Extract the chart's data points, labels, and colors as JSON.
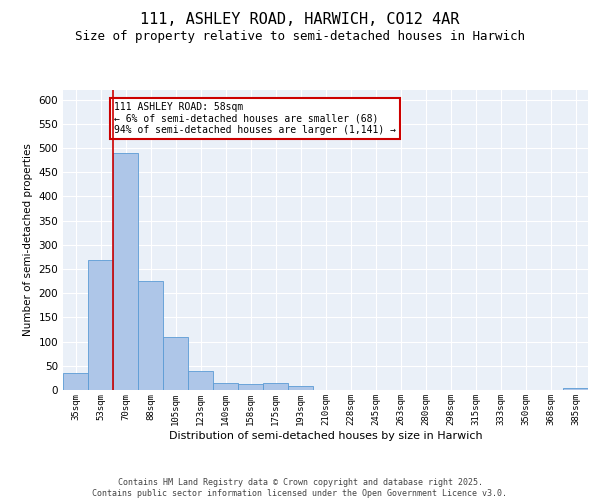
{
  "title1": "111, ASHLEY ROAD, HARWICH, CO12 4AR",
  "title2": "Size of property relative to semi-detached houses in Harwich",
  "xlabel": "Distribution of semi-detached houses by size in Harwich",
  "ylabel": "Number of semi-detached properties",
  "categories": [
    "35sqm",
    "53sqm",
    "70sqm",
    "88sqm",
    "105sqm",
    "123sqm",
    "140sqm",
    "158sqm",
    "175sqm",
    "193sqm",
    "210sqm",
    "228sqm",
    "245sqm",
    "263sqm",
    "280sqm",
    "298sqm",
    "315sqm",
    "333sqm",
    "350sqm",
    "368sqm",
    "385sqm"
  ],
  "values": [
    35,
    268,
    490,
    225,
    110,
    40,
    15,
    13,
    14,
    8,
    0,
    1,
    0,
    0,
    0,
    0,
    0,
    0,
    0,
    0,
    4
  ],
  "bar_color": "#aec6e8",
  "bar_edge_color": "#5b9bd5",
  "annotation_text": "111 ASHLEY ROAD: 58sqm\n← 6% of semi-detached houses are smaller (68)\n94% of semi-detached houses are larger (1,141) →",
  "annotation_box_color": "#ffffff",
  "annotation_box_edge": "#cc0000",
  "footnote": "Contains HM Land Registry data © Crown copyright and database right 2025.\nContains public sector information licensed under the Open Government Licence v3.0.",
  "ylim": [
    0,
    620
  ],
  "yticks": [
    0,
    50,
    100,
    150,
    200,
    250,
    300,
    350,
    400,
    450,
    500,
    550,
    600
  ],
  "bg_color": "#eaf0f8",
  "grid_color": "#ffffff",
  "title1_fontsize": 11,
  "title2_fontsize": 9,
  "footnote_fontsize": 6.0
}
